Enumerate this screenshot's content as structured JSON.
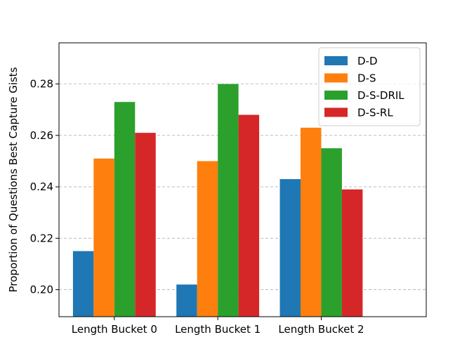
{
  "chart_data": {
    "type": "bar",
    "title": "",
    "xlabel": "",
    "ylabel": "Proportion of Questions Best Capture Gists",
    "categories": [
      "Length Bucket 0",
      "Length Bucket 1",
      "Length Bucket 2"
    ],
    "series": [
      {
        "name": "D-D",
        "color": "#1f77b4",
        "values": [
          0.215,
          0.202,
          0.243
        ]
      },
      {
        "name": "D-S",
        "color": "#ff7f0e",
        "values": [
          0.251,
          0.25,
          0.263
        ]
      },
      {
        "name": "D-S-DRIL",
        "color": "#2ca02c",
        "values": [
          0.273,
          0.28,
          0.255
        ]
      },
      {
        "name": "D-S-RL",
        "color": "#d62728",
        "values": [
          0.261,
          0.268,
          0.239
        ]
      }
    ],
    "ylim": [
      0.1895,
      0.296
    ],
    "yticks": [
      "0.20",
      "0.22",
      "0.24",
      "0.26",
      "0.28"
    ],
    "grid": "y-dashed",
    "legend_position": "top-right"
  }
}
